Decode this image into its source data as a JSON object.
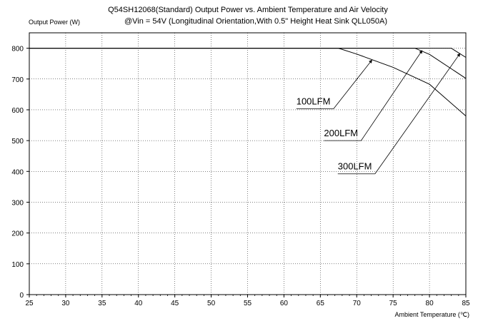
{
  "chart_data": {
    "type": "line",
    "title": "Q54SH12068(Standard)  Output Power vs. Ambient Temperature and Air Velocity",
    "subtitle": "@Vin = 54V (Longitudinal  Orientation,With 0.5\" Height Heat Sink QLL050A)",
    "ylabel": "Output Power (W)",
    "xlabel": "Ambient Temperature (℃)",
    "xlim": [
      25,
      85
    ],
    "ylim": [
      0,
      850
    ],
    "x_ticks": [
      25,
      30,
      35,
      40,
      45,
      50,
      55,
      60,
      65,
      70,
      75,
      80,
      85
    ],
    "y_ticks": [
      0,
      100,
      200,
      300,
      400,
      500,
      600,
      700,
      800
    ],
    "grid": true,
    "series": [
      {
        "name": "100LFM",
        "x": [
          25,
          67.5,
          70,
          75,
          80,
          85
        ],
        "y": [
          800,
          800,
          781,
          738,
          683,
          580
        ],
        "label_at": [
          61.7,
          603
        ],
        "arrow_to": [
          72.1,
          762
        ]
      },
      {
        "name": "200LFM",
        "x": [
          25,
          78,
          80,
          85
        ],
        "y": [
          800,
          800,
          780,
          702
        ],
        "label_at": [
          65.5,
          500
        ],
        "arrow_to": [
          79,
          793
        ]
      },
      {
        "name": "300LFM",
        "x": [
          25,
          83,
          85
        ],
        "y": [
          800,
          800,
          770
        ],
        "label_at": [
          67.4,
          392
        ],
        "arrow_to": [
          84.2,
          783
        ]
      }
    ]
  }
}
